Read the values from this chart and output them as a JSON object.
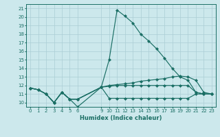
{
  "xlabel": "Humidex (Indice chaleur)",
  "bg_color": "#cce8ec",
  "grid_color": "#aacdd4",
  "line_color": "#1a6e64",
  "xlim": [
    -0.5,
    23.5
  ],
  "ylim": [
    9.5,
    21.5
  ],
  "xticks": [
    0,
    1,
    2,
    3,
    4,
    5,
    6,
    9,
    10,
    11,
    12,
    13,
    14,
    15,
    16,
    17,
    18,
    19,
    20,
    21,
    22,
    23
  ],
  "yticks": [
    10,
    11,
    12,
    13,
    14,
    15,
    16,
    17,
    18,
    19,
    20,
    21
  ],
  "line1_x": [
    0,
    1,
    2,
    3,
    4,
    5,
    6,
    9,
    10,
    11,
    12,
    13,
    14,
    15,
    16,
    17,
    18,
    19,
    20,
    21,
    22,
    23
  ],
  "line1_y": [
    11.7,
    11.5,
    11.0,
    10.0,
    11.2,
    10.4,
    10.4,
    11.8,
    15.0,
    20.8,
    20.1,
    19.3,
    18.0,
    17.2,
    16.3,
    15.2,
    14.0,
    13.0,
    12.6,
    11.2,
    11.0,
    11.0
  ],
  "line2_x": [
    0,
    1,
    2,
    3,
    4,
    5,
    6,
    9,
    10,
    11,
    12,
    13,
    14,
    15,
    16,
    17,
    18,
    19,
    20,
    21,
    22,
    23
  ],
  "line2_y": [
    11.7,
    11.5,
    11.0,
    10.0,
    11.2,
    10.4,
    10.4,
    11.8,
    12.0,
    12.1,
    12.2,
    12.3,
    12.5,
    12.6,
    12.7,
    12.8,
    13.0,
    13.1,
    13.0,
    12.6,
    11.2,
    11.0
  ],
  "line3_x": [
    0,
    1,
    2,
    3,
    4,
    5,
    6,
    9,
    10,
    11,
    12,
    13,
    14,
    15,
    16,
    17,
    18,
    19,
    20,
    21,
    22,
    23
  ],
  "line3_y": [
    11.7,
    11.5,
    11.0,
    10.0,
    11.2,
    10.4,
    9.5,
    11.8,
    11.9,
    12.0,
    12.0,
    12.0,
    12.0,
    12.0,
    12.0,
    12.0,
    12.0,
    12.0,
    12.0,
    11.2,
    11.0,
    11.0
  ],
  "line4_x": [
    0,
    1,
    2,
    3,
    4,
    5,
    6,
    9,
    10,
    11,
    12,
    13,
    14,
    15,
    16,
    17,
    18,
    19,
    20,
    21,
    22,
    23
  ],
  "line4_y": [
    11.7,
    11.5,
    11.0,
    10.0,
    11.2,
    10.4,
    10.4,
    11.8,
    10.5,
    10.5,
    10.5,
    10.5,
    10.5,
    10.5,
    10.5,
    10.5,
    10.5,
    10.5,
    10.5,
    11.0,
    11.0,
    11.0
  ],
  "xlabel_fontsize": 6,
  "tick_fontsize": 5,
  "linewidth": 0.85,
  "markersize": 2.2
}
